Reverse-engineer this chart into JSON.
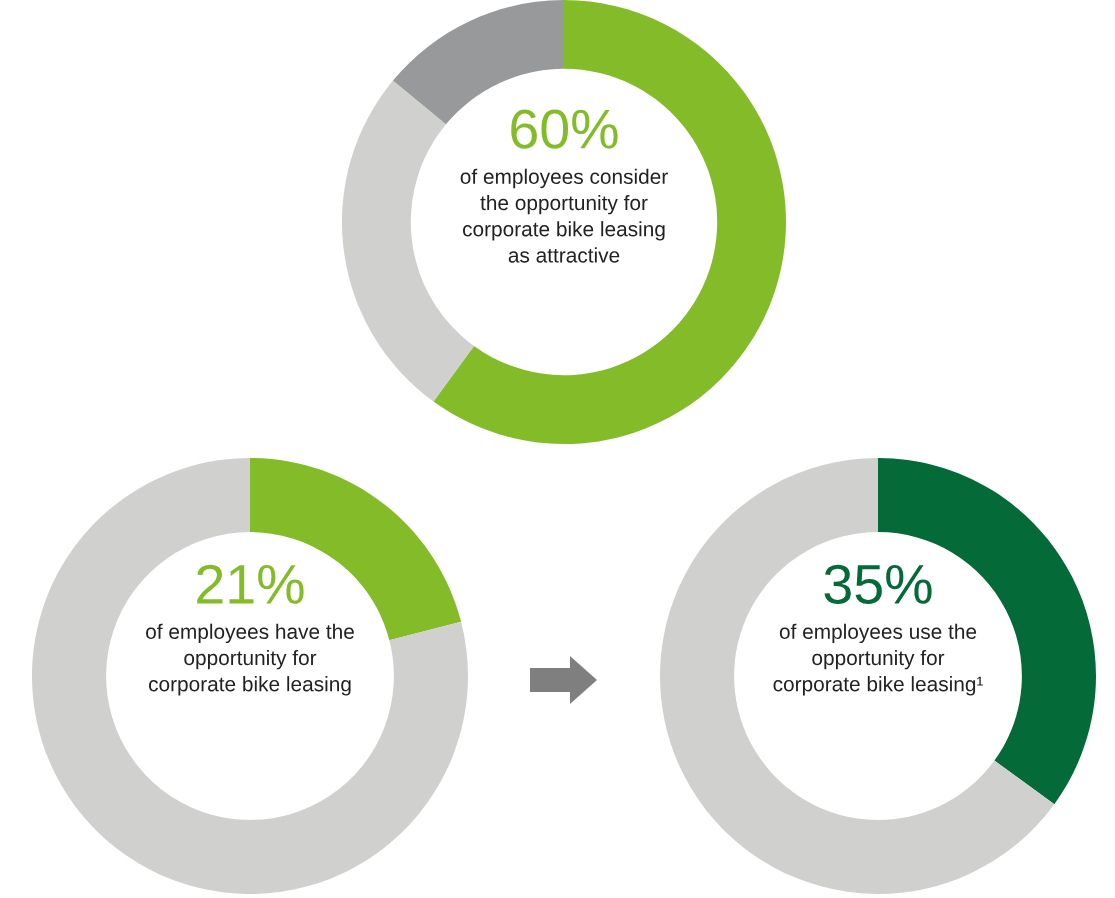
{
  "chart_data": [
    {
      "type": "donut",
      "categories": [
        null,
        null,
        null
      ],
      "values": [
        60,
        26,
        14
      ],
      "colors": [
        "#84bc29",
        "#d0d0ce",
        "#97999b"
      ],
      "value_labels": [
        "60%",
        null,
        null
      ],
      "annotations": [
        "of employees consider\nthe opportunity for\ncorporate bike leasing\nas attractive"
      ]
    },
    {
      "type": "donut",
      "categories": [
        null,
        null
      ],
      "values": [
        21,
        79
      ],
      "colors": [
        "#84bc29",
        "#d0d0ce"
      ],
      "value_labels": [
        "21%",
        null
      ],
      "annotations": [
        "of employees have the\nopportunity for\ncorporate bike leasing"
      ]
    },
    {
      "type": "donut",
      "categories": [
        null,
        null
      ],
      "values": [
        35,
        65
      ],
      "colors": [
        "#046a38",
        "#d0d0ce"
      ],
      "value_labels": [
        "35%",
        null
      ],
      "annotations": [
        "of employees use the\nopportunity for\ncorporate bike leasing¹"
      ]
    }
  ]
}
